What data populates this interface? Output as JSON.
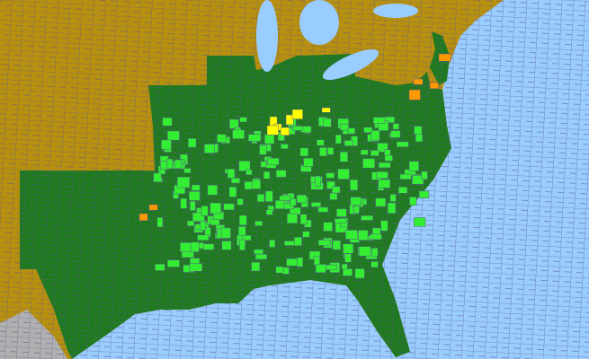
{
  "map": {
    "colors": {
      "ocean": "#99ccff",
      "outside_range": "#b8900f",
      "present_state": "#1f7a1f",
      "present_county": "#33ee33",
      "rare_county": "#ff9900",
      "noxious_county": "#ffff00",
      "foreign": "#b0b0b0",
      "county_lines": "#5a5a8c"
    }
  }
}
